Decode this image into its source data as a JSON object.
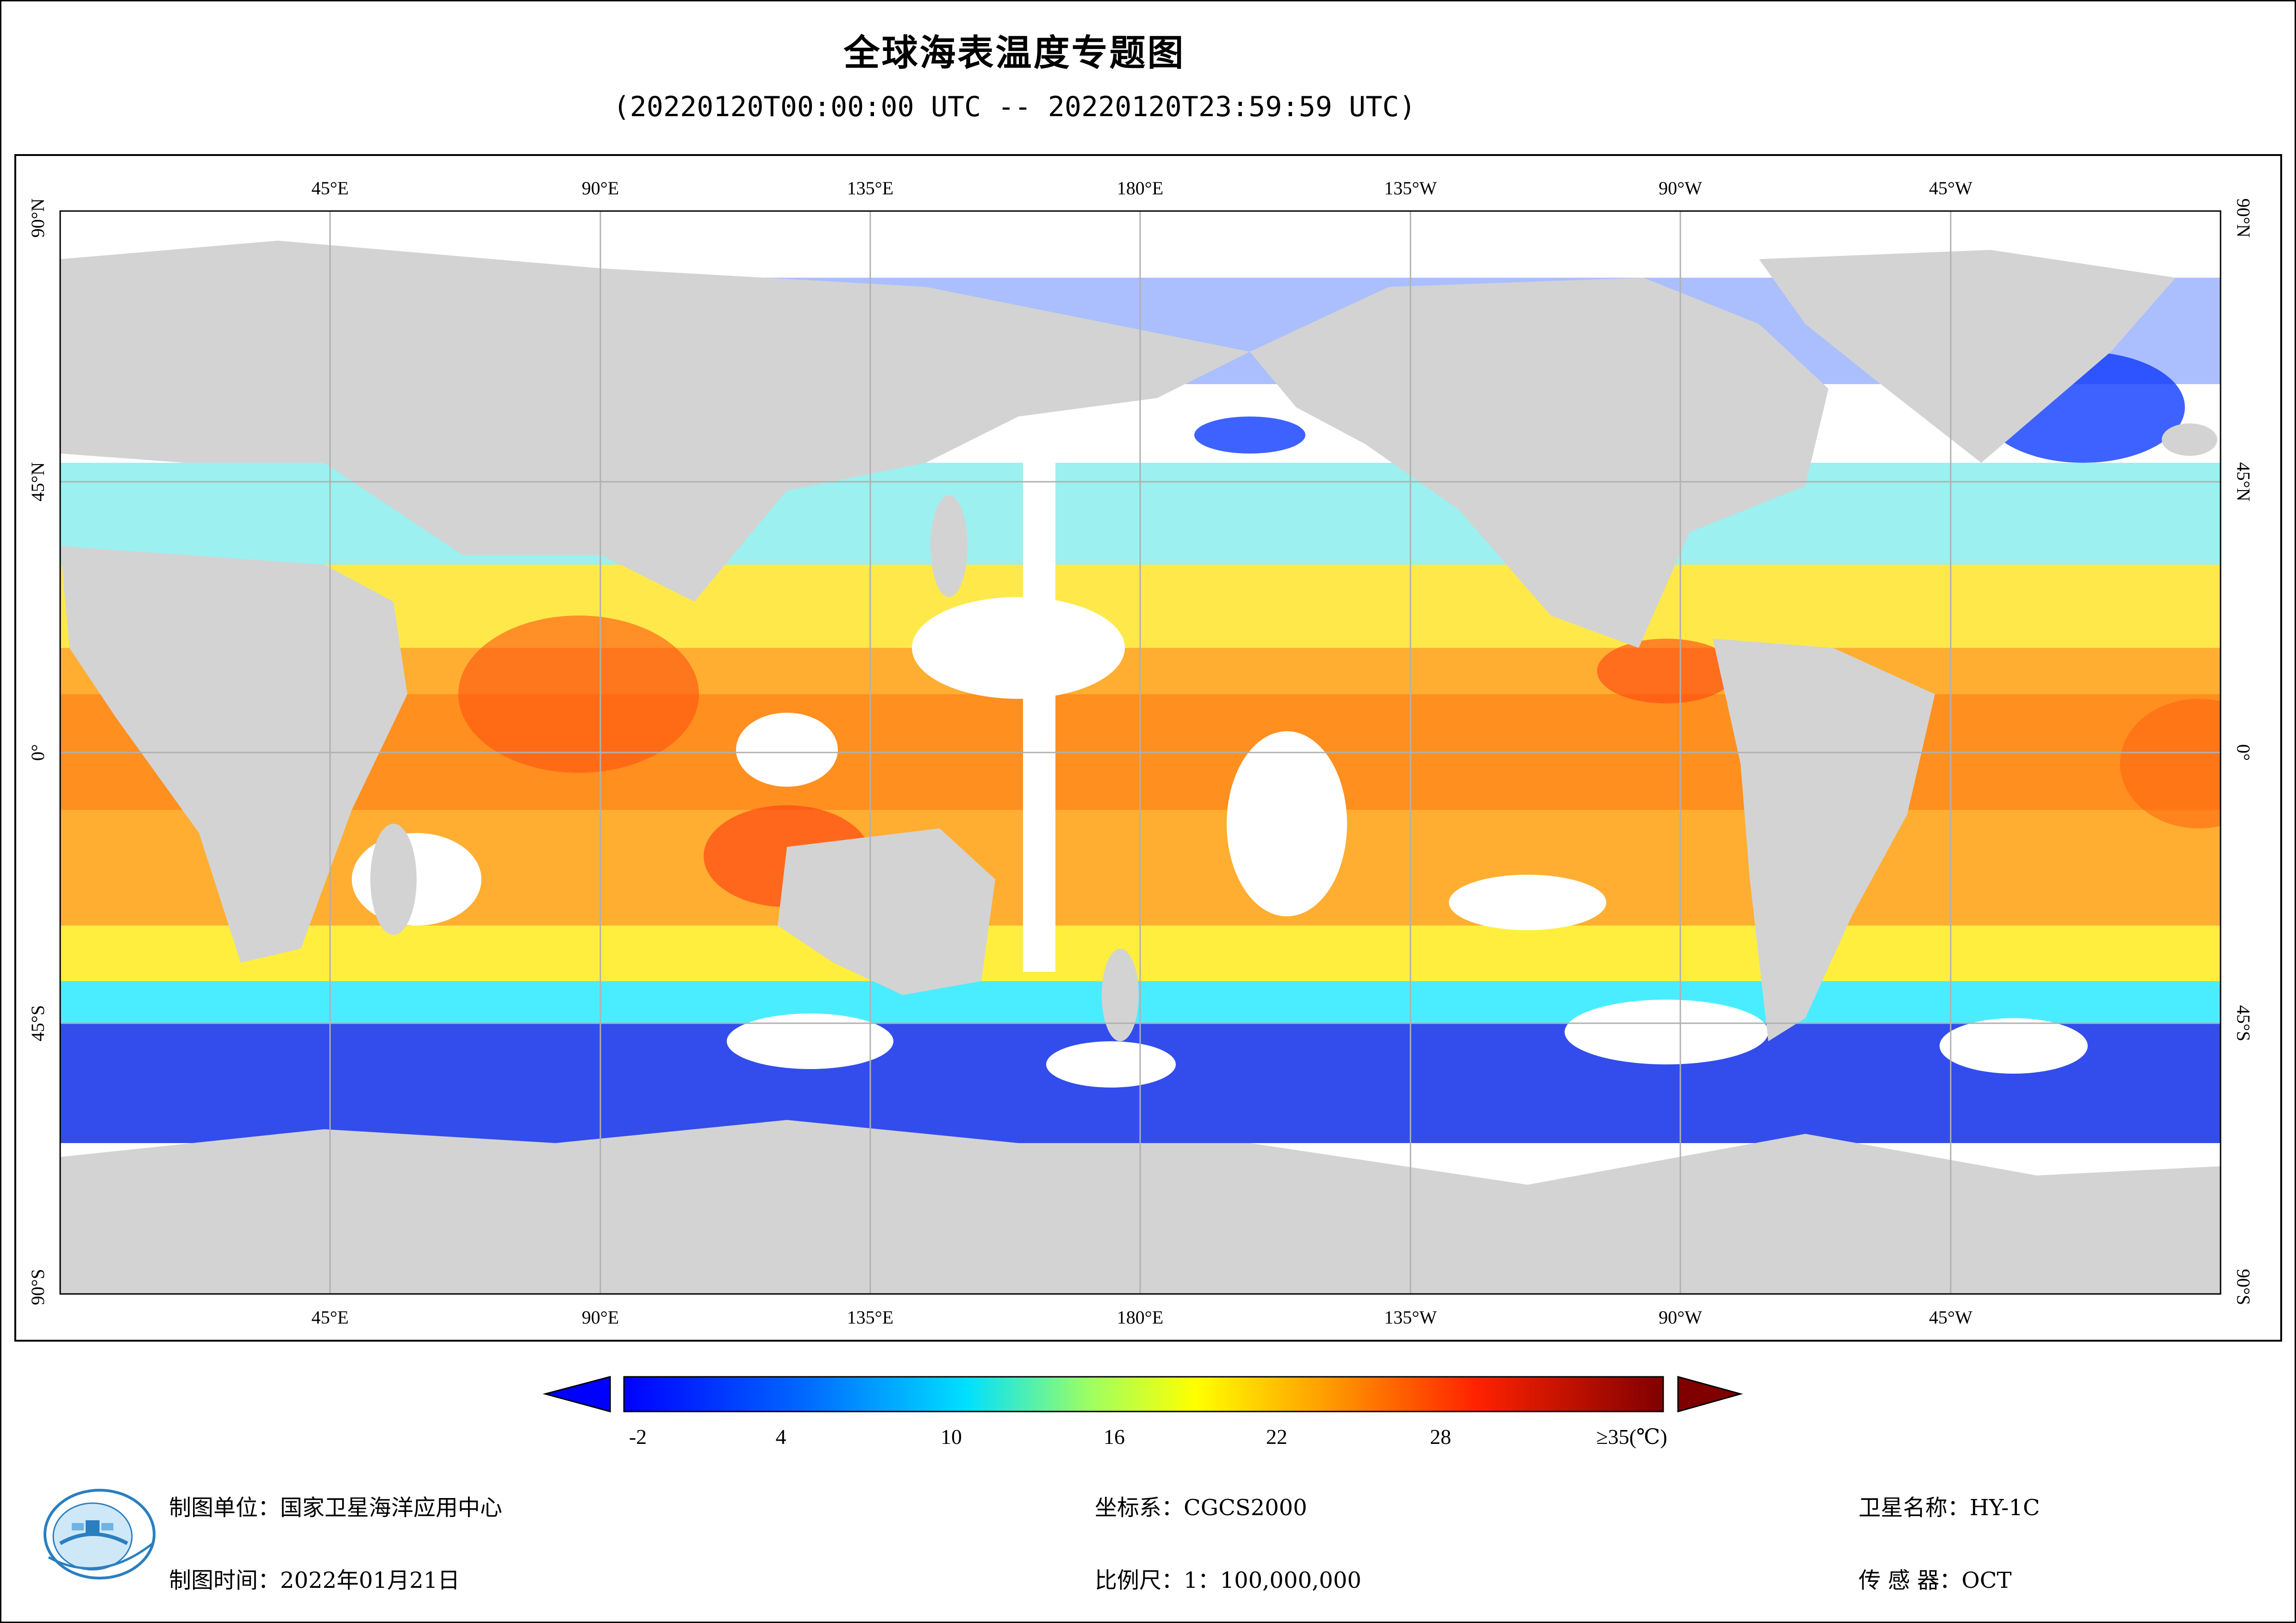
{
  "title": "全球海表温度专题图",
  "subtitle": "(20220120T00:00:00 UTC -- 20220120T23:59:59 UTC)",
  "map": {
    "longitude_labels": [
      "45°E",
      "90°E",
      "135°E",
      "180°E",
      "135°W",
      "90°W",
      "45°W"
    ],
    "latitude_labels": [
      "90°N",
      "45°N",
      "0°",
      "45°S",
      "90°S"
    ],
    "land_color": "#d3d3d3",
    "no_data_color": "#ffffff",
    "gridline_color": "#b0b0b0"
  },
  "colorbar": {
    "tick_labels": [
      "-2",
      "4",
      "10",
      "16",
      "22",
      "28",
      "≥35(℃)"
    ],
    "colors": [
      "#0000ff",
      "#0066ff",
      "#00e0ff",
      "#a0ff60",
      "#ffff00",
      "#ff9900",
      "#ff2200",
      "#800000"
    ]
  },
  "footer": {
    "producer": "制图单位：国家卫星海洋应用中心",
    "produced_date": "制图时间：2022年01月21日",
    "coordinate_system": "坐标系：CGCS2000",
    "scale": "比例尺：1：100,000,000",
    "satellite": "卫星名称：HY-1C",
    "sensor": "传 感 器：OCT"
  },
  "logo": {
    "icon": "nsoas-logo-icon"
  }
}
